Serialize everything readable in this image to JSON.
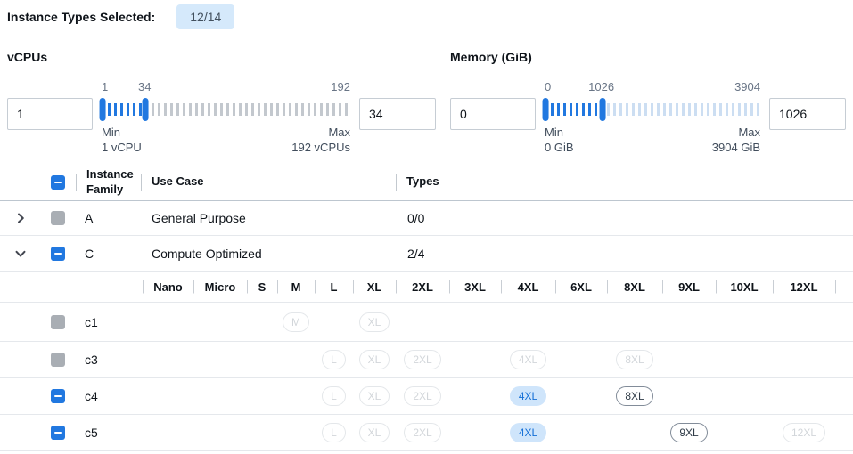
{
  "colors": {
    "accent": "#2178e0",
    "badge_bg": "#d5e9fb",
    "badge_text": "#42505e",
    "tick_base": "#c3c8ce",
    "tick_base_memory": "#ccdef2",
    "pill_sel_bg": "#cfe5fb",
    "pill_sel_text": "#146fd6",
    "checkbox_disabled": "#a9aeb4"
  },
  "header": {
    "label": "Instance Types Selected:",
    "badge": "12/14"
  },
  "filters": {
    "vcpus": {
      "title": "vCPUs",
      "from_value": "1",
      "to_value": "34",
      "scale": [
        "1",
        "34",
        "192"
      ],
      "min_label": "Min",
      "min_caption": "1 vCPU",
      "max_label": "Max",
      "max_caption": "192 vCPUs",
      "range": {
        "min": 1,
        "max": 192,
        "from": 1,
        "to": 34
      }
    },
    "memory": {
      "title": "Memory (GiB)",
      "from_value": "0",
      "to_value": "1026",
      "scale": [
        "0",
        "1026",
        "3904"
      ],
      "min_label": "Min",
      "min_caption": "0 GiB",
      "max_label": "Max",
      "max_caption": "3904 GiB",
      "range": {
        "min": 0,
        "max": 3904,
        "from": 0,
        "to": 1026
      }
    }
  },
  "table": {
    "columns": {
      "family": "Instance Family",
      "use_case": "Use Case",
      "types": "Types"
    },
    "sizes": [
      "Nano",
      "Micro",
      "S",
      "M",
      "L",
      "XL",
      "2XL",
      "3XL",
      "4XL",
      "6XL",
      "8XL",
      "9XL",
      "10XL",
      "12XL"
    ],
    "family_rows": [
      {
        "family": "A",
        "use_case": "General Purpose",
        "types": "0/0",
        "expanded": false,
        "checkbox": "disabled"
      },
      {
        "family": "C",
        "use_case": "Compute Optimized",
        "types": "2/4",
        "expanded": true,
        "checkbox": "indeterminate"
      }
    ],
    "instance_rows": [
      {
        "name": "c1",
        "checkbox": "disabled",
        "pills": {
          "M": "disabled",
          "XL": "disabled"
        }
      },
      {
        "name": "c3",
        "checkbox": "disabled",
        "pills": {
          "L": "disabled",
          "XL": "disabled",
          "2XL": "disabled",
          "4XL": "disabled",
          "8XL": "disabled"
        }
      },
      {
        "name": "c4",
        "checkbox": "indeterminate",
        "pills": {
          "L": "disabled",
          "XL": "disabled",
          "2XL": "disabled",
          "4XL": "selected",
          "8XL": "enabled"
        }
      },
      {
        "name": "c5",
        "checkbox": "indeterminate",
        "pills": {
          "L": "disabled",
          "XL": "disabled",
          "2XL": "disabled",
          "4XL": "selected",
          "9XL": "enabled",
          "12XL": "disabled"
        }
      }
    ]
  }
}
